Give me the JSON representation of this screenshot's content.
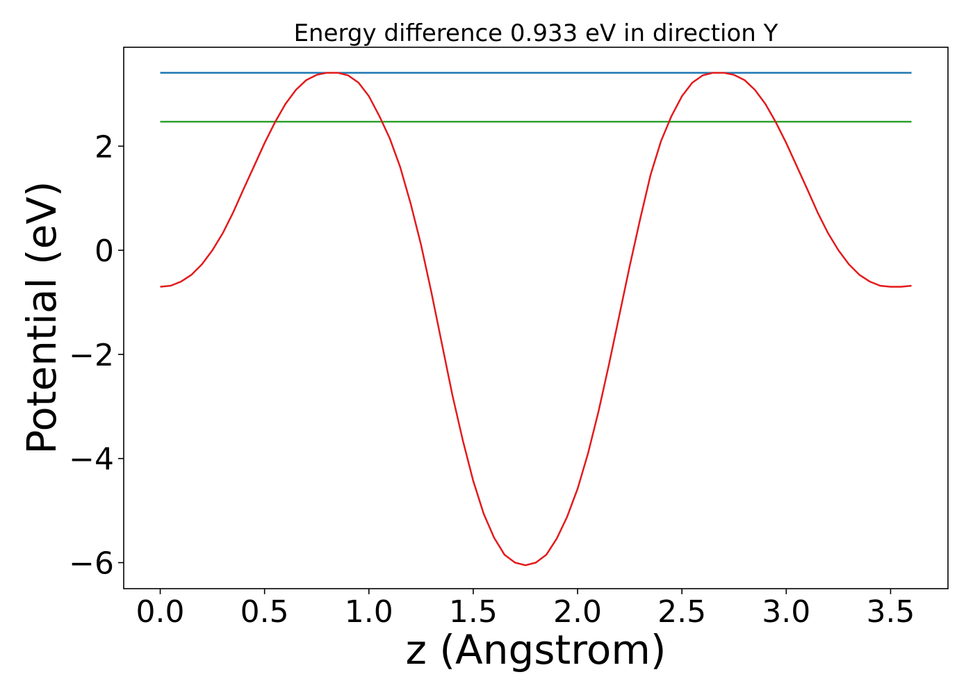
{
  "chart_data": {
    "type": "line",
    "title": "Energy difference 0.933 eV in direction Y",
    "xlabel": "z (Angstrom)",
    "ylabel": "Potential (eV)",
    "xlim": [
      -0.175,
      3.775
    ],
    "ylim": [
      -6.5,
      3.9
    ],
    "xticks": [
      0.0,
      0.5,
      1.0,
      1.5,
      2.0,
      2.5,
      3.0,
      3.5
    ],
    "xtick_labels": [
      "0.0",
      "0.5",
      "1.0",
      "1.5",
      "2.0",
      "2.5",
      "3.0",
      "3.5"
    ],
    "yticks": [
      -6,
      -4,
      -2,
      0,
      2
    ],
    "ytick_labels": [
      "−6",
      "−4",
      "−2",
      "0",
      "2"
    ],
    "grid": false,
    "series": [
      {
        "color": "#1f77b4",
        "x": [
          0.0,
          3.6
        ],
        "y": [
          3.41,
          3.41
        ]
      },
      {
        "color": "#2ca02c",
        "x": [
          0.0,
          3.6
        ],
        "y": [
          2.47,
          2.47
        ]
      },
      {
        "color": "#e31a1c",
        "x": [
          0.0,
          0.05,
          0.1,
          0.15,
          0.2,
          0.25,
          0.3,
          0.35,
          0.4,
          0.45,
          0.5,
          0.55,
          0.6,
          0.65,
          0.7,
          0.75,
          0.8,
          0.85,
          0.9,
          0.95,
          1.0,
          1.05,
          1.1,
          1.15,
          1.2,
          1.25,
          1.3,
          1.35,
          1.4,
          1.45,
          1.5,
          1.55,
          1.6,
          1.65,
          1.7,
          1.75,
          1.8,
          1.85,
          1.9,
          1.95,
          2.0,
          2.05,
          2.1,
          2.15,
          2.2,
          2.25,
          2.3,
          2.35,
          2.4,
          2.45,
          2.5,
          2.55,
          2.6,
          2.65,
          2.7,
          2.75,
          2.8,
          2.85,
          2.9,
          2.95,
          3.0,
          3.05,
          3.1,
          3.15,
          3.2,
          3.25,
          3.3,
          3.35,
          3.4,
          3.45,
          3.5,
          3.55,
          3.6
        ],
        "y": [
          -0.7,
          -0.68,
          -0.6,
          -0.47,
          -0.27,
          0.0,
          0.33,
          0.73,
          1.18,
          1.62,
          2.06,
          2.46,
          2.81,
          3.08,
          3.27,
          3.37,
          3.41,
          3.41,
          3.36,
          3.22,
          2.96,
          2.58,
          2.15,
          1.6,
          0.9,
          0.1,
          -0.82,
          -1.8,
          -2.78,
          -3.65,
          -4.43,
          -5.06,
          -5.52,
          -5.85,
          -6.0,
          -6.05,
          -6.0,
          -5.85,
          -5.54,
          -5.12,
          -4.58,
          -3.9,
          -3.1,
          -2.2,
          -1.25,
          -0.3,
          0.6,
          1.45,
          2.1,
          2.58,
          2.96,
          3.22,
          3.36,
          3.41,
          3.41,
          3.37,
          3.27,
          3.08,
          2.81,
          2.46,
          2.06,
          1.62,
          1.18,
          0.73,
          0.33,
          0.0,
          -0.27,
          -0.47,
          -0.6,
          -0.68,
          -0.7,
          -0.7,
          -0.68
        ]
      }
    ]
  }
}
